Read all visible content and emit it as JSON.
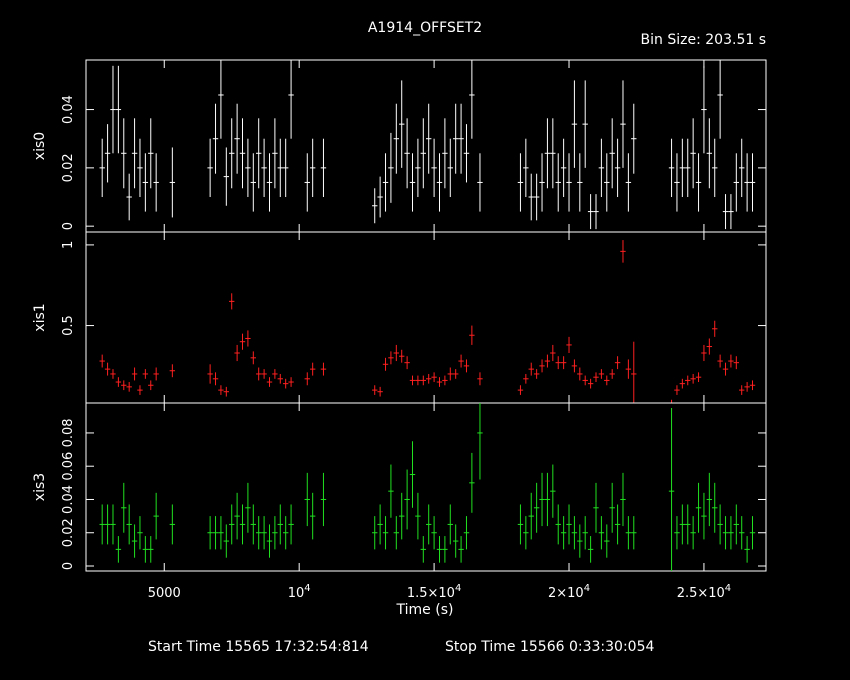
{
  "chart_data": {
    "type": "scatter",
    "title": "A1914_OFFSET2",
    "bin_size_label": "Bin Size:  203.51  s",
    "xlabel": "Time (s)",
    "xlim": [
      2100,
      27300
    ],
    "x_ticks": [
      5000,
      10000,
      15000,
      20000,
      25000
    ],
    "x_tick_labels": [
      {
        "base": "5000",
        "exp": ""
      },
      {
        "base": "10",
        "exp": "4"
      },
      {
        "base": "1.5×10",
        "exp": "4"
      },
      {
        "base": "2×10",
        "exp": "4"
      },
      {
        "base": "2.5×10",
        "exp": "4"
      }
    ],
    "footer": {
      "start_label": "Start Time  15565  17:32:54:814",
      "stop_label": "Stop Time  15566   0:33:30:054"
    },
    "panels": [
      {
        "name": "xis0",
        "ylabel": "xis0",
        "color": "#ffffff",
        "ylim": [
          -0.002,
          0.057
        ],
        "y_ticks": [
          0,
          0.02,
          0.04
        ],
        "y_tick_labels": [
          "0",
          "0.02",
          "0.04"
        ],
        "x": [
          2700,
          2900,
          3100,
          3300,
          3500,
          3700,
          3900,
          4100,
          4300,
          4500,
          4700,
          5300,
          6700,
          6900,
          7100,
          7300,
          7500,
          7700,
          7900,
          8100,
          8300,
          8500,
          8700,
          8900,
          9100,
          9300,
          9500,
          9700,
          10300,
          10500,
          10900,
          12800,
          13000,
          13200,
          13400,
          13600,
          13800,
          14000,
          14200,
          14400,
          14600,
          14800,
          15000,
          15200,
          15400,
          15600,
          15800,
          16000,
          16200,
          16400,
          16700,
          18200,
          18400,
          18600,
          18800,
          19000,
          19200,
          19400,
          19600,
          19800,
          20000,
          20200,
          20400,
          20600,
          20800,
          21000,
          21200,
          21400,
          21600,
          21800,
          22000,
          22200,
          22400,
          23800,
          24000,
          24200,
          24400,
          24600,
          24800,
          25000,
          25200,
          25400,
          25600,
          25800,
          26000,
          26200,
          26400,
          26600,
          26800
        ],
        "y": [
          0.02,
          0.025,
          0.04,
          0.04,
          0.025,
          0.01,
          0.025,
          0.02,
          0.015,
          0.025,
          0.015,
          0.015,
          0.02,
          0.03,
          0.045,
          0.017,
          0.025,
          0.03,
          0.025,
          0.02,
          0.015,
          0.025,
          0.02,
          0.015,
          0.025,
          0.02,
          0.02,
          0.045,
          0.015,
          0.02,
          0.02,
          0.007,
          0.01,
          0.015,
          0.02,
          0.03,
          0.035,
          0.025,
          0.015,
          0.02,
          0.025,
          0.03,
          0.02,
          0.015,
          0.025,
          0.02,
          0.03,
          0.03,
          0.025,
          0.045,
          0.015,
          0.015,
          0.02,
          0.01,
          0.01,
          0.015,
          0.025,
          0.025,
          0.015,
          0.02,
          0.015,
          0.035,
          0.015,
          0.035,
          0.005,
          0.005,
          0.02,
          0.015,
          0.025,
          0.02,
          0.035,
          0.015,
          0.03,
          0.02,
          0.015,
          0.02,
          0.02,
          0.025,
          0.015,
          0.04,
          0.025,
          0.02,
          0.045,
          0.005,
          0.005,
          0.015,
          0.02,
          0.015,
          0.015
        ],
        "err": [
          0.01,
          0.01,
          0.015,
          0.015,
          0.012,
          0.008,
          0.012,
          0.01,
          0.01,
          0.012,
          0.01,
          0.012,
          0.01,
          0.012,
          0.015,
          0.01,
          0.012,
          0.012,
          0.012,
          0.01,
          0.01,
          0.012,
          0.01,
          0.01,
          0.012,
          0.01,
          0.01,
          0.015,
          0.01,
          0.01,
          0.01,
          0.006,
          0.007,
          0.01,
          0.012,
          0.012,
          0.015,
          0.012,
          0.01,
          0.01,
          0.012,
          0.012,
          0.01,
          0.01,
          0.012,
          0.01,
          0.012,
          0.012,
          0.01,
          0.015,
          0.01,
          0.01,
          0.01,
          0.008,
          0.008,
          0.01,
          0.012,
          0.012,
          0.01,
          0.01,
          0.01,
          0.015,
          0.01,
          0.015,
          0.006,
          0.006,
          0.01,
          0.01,
          0.012,
          0.01,
          0.015,
          0.01,
          0.012,
          0.01,
          0.01,
          0.01,
          0.01,
          0.012,
          0.01,
          0.015,
          0.012,
          0.01,
          0.015,
          0.006,
          0.006,
          0.01,
          0.01,
          0.01,
          0.01
        ]
      },
      {
        "name": "xis1",
        "ylabel": "xis1",
        "color": "#ff2020",
        "ylim": [
          0.02,
          1.08
        ],
        "y_ticks": [
          0.5,
          1
        ],
        "y_tick_labels": [
          "0.5",
          "1"
        ],
        "x": [
          2700,
          2900,
          3100,
          3300,
          3500,
          3700,
          3900,
          4100,
          4300,
          4500,
          4700,
          5300,
          6700,
          6900,
          7100,
          7300,
          7500,
          7700,
          7900,
          8100,
          8300,
          8500,
          8700,
          8900,
          9100,
          9300,
          9500,
          9700,
          10300,
          10500,
          10900,
          12800,
          13000,
          13200,
          13400,
          13600,
          13800,
          14000,
          14200,
          14400,
          14600,
          14800,
          15000,
          15200,
          15400,
          15600,
          15800,
          16000,
          16200,
          16400,
          16700,
          18200,
          18400,
          18600,
          18800,
          19000,
          19200,
          19400,
          19600,
          19800,
          20000,
          20200,
          20400,
          20600,
          20800,
          21000,
          21200,
          21400,
          21600,
          21800,
          22000,
          22200,
          22400,
          23800,
          24000,
          24200,
          24400,
          24600,
          24800,
          25000,
          25200,
          25400,
          25600,
          25800,
          26000,
          26200,
          26400,
          26600,
          26800
        ],
        "y": [
          0.28,
          0.23,
          0.2,
          0.15,
          0.13,
          0.12,
          0.2,
          0.1,
          0.2,
          0.13,
          0.2,
          0.22,
          0.2,
          0.17,
          0.1,
          0.09,
          0.65,
          0.33,
          0.4,
          0.42,
          0.3,
          0.2,
          0.2,
          0.15,
          0.2,
          0.17,
          0.14,
          0.15,
          0.17,
          0.23,
          0.23,
          0.1,
          0.09,
          0.26,
          0.3,
          0.33,
          0.31,
          0.27,
          0.16,
          0.16,
          0.16,
          0.17,
          0.18,
          0.15,
          0.16,
          0.2,
          0.2,
          0.28,
          0.25,
          0.44,
          0.17,
          0.1,
          0.17,
          0.23,
          0.2,
          0.25,
          0.28,
          0.33,
          0.27,
          0.27,
          0.38,
          0.25,
          0.2,
          0.16,
          0.14,
          0.18,
          0.2,
          0.16,
          0.2,
          0.27,
          0.96,
          0.23,
          0.2,
          0.02,
          0.1,
          0.14,
          0.16,
          0.17,
          0.18,
          0.33,
          0.37,
          0.48,
          0.28,
          0.23,
          0.28,
          0.27,
          0.1,
          0.12,
          0.13
        ],
        "err": [
          0.04,
          0.04,
          0.03,
          0.03,
          0.03,
          0.03,
          0.04,
          0.03,
          0.03,
          0.03,
          0.04,
          0.04,
          0.06,
          0.04,
          0.03,
          0.03,
          0.05,
          0.05,
          0.05,
          0.05,
          0.04,
          0.04,
          0.03,
          0.03,
          0.03,
          0.03,
          0.03,
          0.03,
          0.04,
          0.04,
          0.04,
          0.03,
          0.03,
          0.04,
          0.04,
          0.05,
          0.04,
          0.04,
          0.03,
          0.03,
          0.03,
          0.03,
          0.03,
          0.03,
          0.03,
          0.04,
          0.03,
          0.04,
          0.04,
          0.06,
          0.04,
          0.03,
          0.03,
          0.04,
          0.03,
          0.04,
          0.04,
          0.05,
          0.04,
          0.04,
          0.05,
          0.04,
          0.04,
          0.03,
          0.03,
          0.03,
          0.03,
          0.03,
          0.03,
          0.04,
          0.07,
          0.06,
          0.2,
          0.02,
          0.03,
          0.03,
          0.03,
          0.03,
          0.03,
          0.05,
          0.05,
          0.05,
          0.04,
          0.04,
          0.04,
          0.04,
          0.03,
          0.03,
          0.03
        ]
      },
      {
        "name": "xis3",
        "ylabel": "xis3",
        "color": "#20e020",
        "ylim": [
          -0.003,
          0.098
        ],
        "y_ticks": [
          0,
          0.02,
          0.04,
          0.06,
          0.08
        ],
        "y_tick_labels": [
          "0",
          "0.02",
          "0.04",
          "0.06",
          "0.08"
        ],
        "x": [
          2700,
          2900,
          3100,
          3300,
          3500,
          3700,
          3900,
          4100,
          4300,
          4500,
          4700,
          5300,
          6700,
          6900,
          7100,
          7300,
          7500,
          7700,
          7900,
          8100,
          8300,
          8500,
          8700,
          8900,
          9100,
          9300,
          9500,
          9700,
          10300,
          10500,
          10900,
          12800,
          13000,
          13200,
          13400,
          13600,
          13800,
          14000,
          14200,
          14400,
          14600,
          14800,
          15000,
          15200,
          15400,
          15600,
          15800,
          16000,
          16200,
          16400,
          16700,
          18200,
          18400,
          18600,
          18800,
          19000,
          19200,
          19400,
          19600,
          19800,
          20000,
          20200,
          20400,
          20600,
          20800,
          21000,
          21200,
          21400,
          21600,
          21800,
          22000,
          22200,
          22400,
          23800,
          24000,
          24200,
          24400,
          24600,
          24800,
          25000,
          25200,
          25400,
          25600,
          25800,
          26000,
          26200,
          26400,
          26600,
          26800
        ],
        "y": [
          0.025,
          0.025,
          0.025,
          0.01,
          0.035,
          0.025,
          0.015,
          0.02,
          0.01,
          0.01,
          0.03,
          0.025,
          0.02,
          0.02,
          0.02,
          0.015,
          0.025,
          0.03,
          0.025,
          0.035,
          0.025,
          0.02,
          0.02,
          0.015,
          0.02,
          0.025,
          0.02,
          0.025,
          0.04,
          0.03,
          0.04,
          0.02,
          0.025,
          0.02,
          0.045,
          0.02,
          0.03,
          0.04,
          0.055,
          0.03,
          0.01,
          0.025,
          0.02,
          0.01,
          0.01,
          0.025,
          0.015,
          0.01,
          0.02,
          0.05,
          0.08,
          0.025,
          0.02,
          0.03,
          0.035,
          0.04,
          0.04,
          0.045,
          0.025,
          0.02,
          0.025,
          0.02,
          0.015,
          0.02,
          0.01,
          0.035,
          0.02,
          0.015,
          0.035,
          0.025,
          0.04,
          0.02,
          0.02,
          0.045,
          0.02,
          0.025,
          0.025,
          0.02,
          0.035,
          0.03,
          0.04,
          0.035,
          0.025,
          0.02,
          0.02,
          0.025,
          0.02,
          0.01,
          0.02
        ],
        "err": [
          0.012,
          0.012,
          0.012,
          0.008,
          0.015,
          0.012,
          0.01,
          0.01,
          0.008,
          0.008,
          0.014,
          0.012,
          0.01,
          0.01,
          0.01,
          0.01,
          0.012,
          0.014,
          0.012,
          0.015,
          0.012,
          0.01,
          0.01,
          0.01,
          0.01,
          0.012,
          0.01,
          0.012,
          0.016,
          0.014,
          0.016,
          0.01,
          0.012,
          0.01,
          0.016,
          0.01,
          0.014,
          0.018,
          0.02,
          0.014,
          0.008,
          0.012,
          0.01,
          0.008,
          0.008,
          0.012,
          0.01,
          0.008,
          0.01,
          0.018,
          0.028,
          0.012,
          0.01,
          0.014,
          0.015,
          0.016,
          0.016,
          0.016,
          0.012,
          0.01,
          0.012,
          0.01,
          0.01,
          0.01,
          0.008,
          0.015,
          0.01,
          0.01,
          0.015,
          0.012,
          0.016,
          0.01,
          0.01,
          0.05,
          0.01,
          0.012,
          0.012,
          0.01,
          0.015,
          0.014,
          0.016,
          0.015,
          0.012,
          0.01,
          0.01,
          0.012,
          0.01,
          0.008,
          0.01
        ]
      }
    ]
  }
}
